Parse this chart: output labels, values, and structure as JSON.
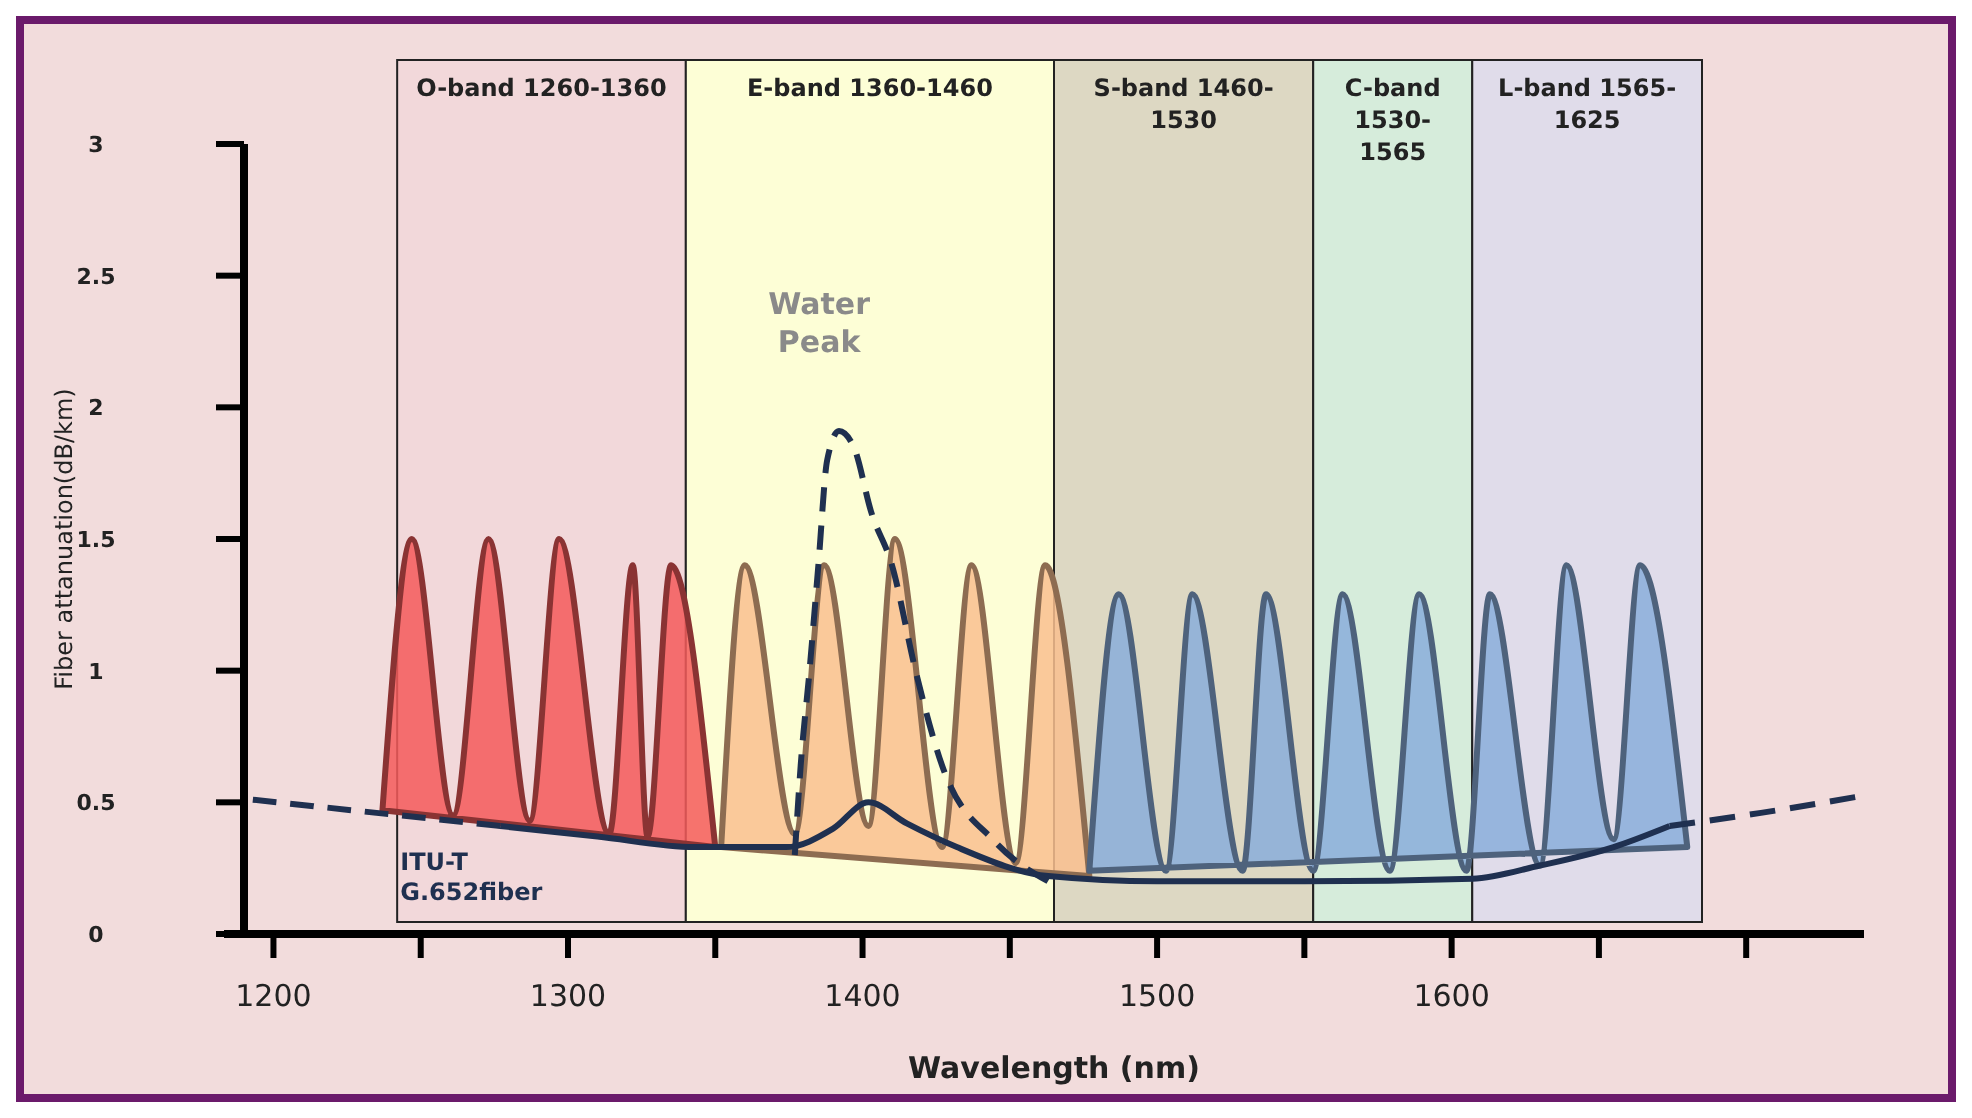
{
  "chart_data": {
    "type": "line",
    "xlabel": "Wavelength (nm)",
    "ylabel": "Fiber attanuation(dB/km)",
    "xlim": [
      1190,
      1740
    ],
    "xticks": [
      1200,
      {
        "value": 1250,
        "label": null
      },
      1300,
      {
        "value": 1350,
        "label": null
      },
      1400,
      {
        "value": 1450,
        "label": null
      },
      1500,
      {
        "value": 1550,
        "label": null
      },
      1600,
      {
        "value": 1650,
        "label": null
      },
      {
        "value": 1700,
        "label": null
      }
    ],
    "ylim": [
      0,
      3
    ],
    "yticks": [
      0,
      0.5,
      1,
      1.5,
      2,
      2.5,
      3
    ],
    "grid": false,
    "bands": [
      {
        "axis": "x",
        "from": 1242,
        "to": 1340,
        "label": "O-band 1260-1360",
        "color": "#f2d8da"
      },
      {
        "axis": "x",
        "from": 1340,
        "to": 1465,
        "label": "E-band 1360-1460",
        "color": "#fdfed6"
      },
      {
        "axis": "x",
        "from": 1465,
        "to": 1553,
        "label": "S-band 1460-1530",
        "color": "#ddd8c3"
      },
      {
        "axis": "x",
        "from": 1553,
        "to": 1607,
        "label": "C-band 1530-1565",
        "color": "#d6ecdb"
      },
      {
        "axis": "x",
        "from": 1607,
        "to": 1685,
        "label": "L-band 1565-1625",
        "color": "#e0dcea"
      }
    ],
    "series": [
      {
        "type": "area",
        "color": "#f45b5b",
        "x": [
          1237,
          1247,
          1261,
          1273,
          1287,
          1297,
          1314,
          1322,
          1327,
          1335,
          1350
        ],
        "values": [
          0.47,
          1.5,
          0.45,
          1.5,
          0.43,
          1.5,
          0.38,
          1.4,
          0.37,
          1.4,
          0.33
        ]
      },
      {
        "type": "area",
        "color": "#f9bf8f",
        "x": [
          1352,
          1360,
          1377,
          1387,
          1402,
          1411,
          1427,
          1437,
          1452,
          1462,
          1477
        ],
        "values": [
          0.33,
          1.4,
          0.38,
          1.4,
          0.41,
          1.5,
          0.33,
          1.4,
          0.27,
          1.4,
          0.22
        ]
      },
      {
        "type": "area",
        "color": "#8aaedb",
        "x": [
          1477,
          1487,
          1503,
          1512,
          1529,
          1537,
          1553,
          1563,
          1579,
          1589,
          1605,
          1613,
          1630,
          1639,
          1655,
          1664,
          1680
        ],
        "values": [
          0.24,
          1.29,
          0.24,
          1.29,
          0.24,
          1.29,
          0.24,
          1.29,
          0.24,
          1.29,
          0.24,
          1.29,
          0.26,
          1.4,
          0.36,
          1.4,
          0.33
        ]
      },
      {
        "color": "#1f3050",
        "line_style": "dashed",
        "x": [
          1193,
          1235,
          1277
        ],
        "values": [
          0.51,
          0.46,
          0.41
        ]
      },
      {
        "name": "ITU-T G.652fiber",
        "color": "#1f3050",
        "line_style": "solid",
        "x": [
          1277,
          1310,
          1343,
          1374,
          1390,
          1402,
          1415,
          1432,
          1463,
          1500,
          1550,
          1607,
          1630,
          1655,
          1674
        ],
        "values": [
          0.41,
          0.37,
          0.33,
          0.33,
          0.4,
          0.5,
          0.42,
          0.33,
          0.22,
          0.2,
          0.2,
          0.21,
          0.26,
          0.33,
          0.41
        ]
      },
      {
        "color": "#1f3050",
        "line_style": "dashed",
        "x": [
          1674,
          1705,
          1737
        ],
        "values": [
          0.41,
          0.46,
          0.52
        ]
      },
      {
        "color": "#1f3050",
        "line_style": "dashed",
        "x": [
          1377,
          1379,
          1382,
          1385,
          1388,
          1392,
          1397,
          1403,
          1410,
          1418,
          1427,
          1445,
          1463
        ],
        "values": [
          0.3,
          0.64,
          1.0,
          1.4,
          1.8,
          1.91,
          1.85,
          1.6,
          1.4,
          1.0,
          0.64,
          0.35,
          0.2
        ]
      }
    ],
    "annotations": [
      "Water Peak"
    ]
  }
}
